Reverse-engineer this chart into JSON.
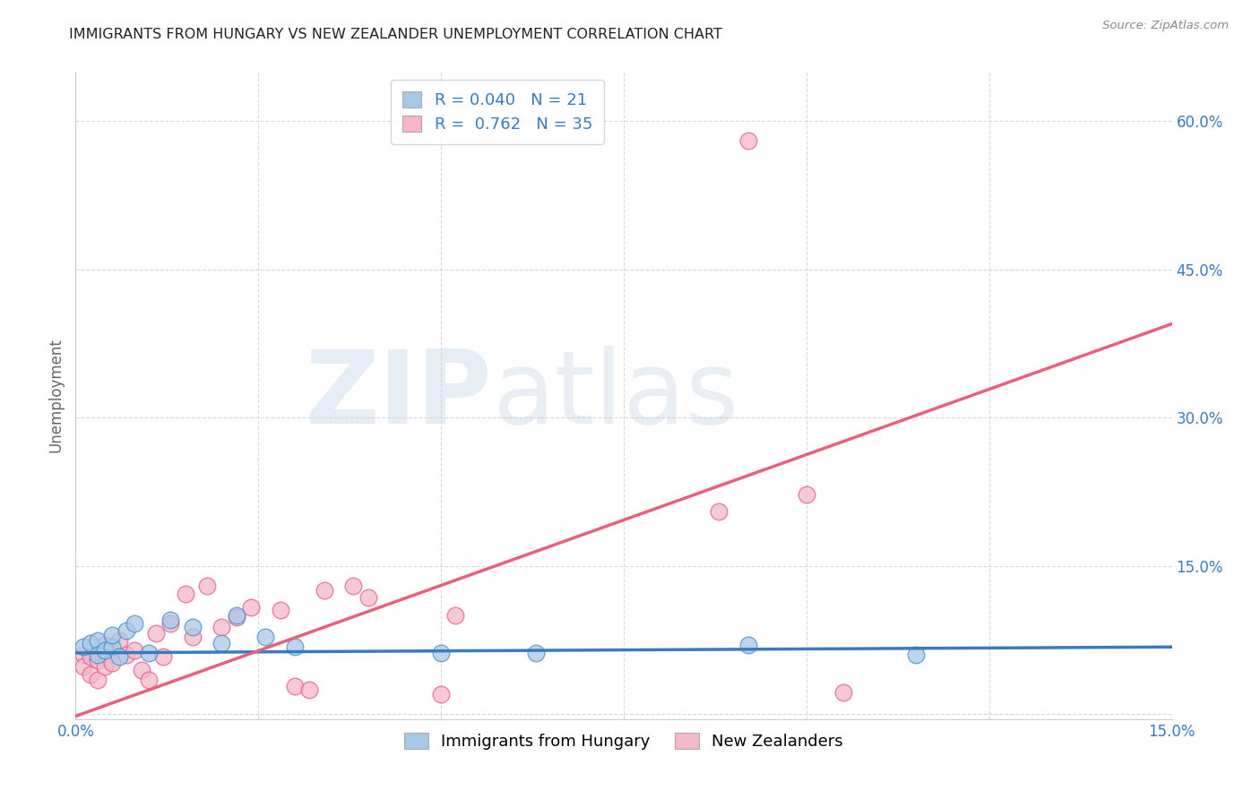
{
  "title": "IMMIGRANTS FROM HUNGARY VS NEW ZEALANDER UNEMPLOYMENT CORRELATION CHART",
  "source": "Source: ZipAtlas.com",
  "ylabel": "Unemployment",
  "xlim": [
    0.0,
    0.15
  ],
  "ylim": [
    -0.005,
    0.65
  ],
  "xticks": [
    0.0,
    0.025,
    0.05,
    0.075,
    0.1,
    0.125,
    0.15
  ],
  "xtick_labels": [
    "0.0%",
    "",
    "",
    "",
    "",
    "",
    "15.0%"
  ],
  "ytick_positions": [
    0.0,
    0.15,
    0.3,
    0.45,
    0.6
  ],
  "right_ytick_labels": [
    "",
    "15.0%",
    "30.0%",
    "45.0%",
    "60.0%"
  ],
  "blue_fill_color": "#a8c8e8",
  "pink_fill_color": "#f4b8c8",
  "blue_edge_color": "#4a90c4",
  "pink_edge_color": "#e06090",
  "blue_line_color": "#3a7abf",
  "pink_line_color": "#e8607a",
  "blue_R": 0.04,
  "blue_N": 21,
  "pink_R": 0.762,
  "pink_N": 35,
  "blue_line_x0": 0.0,
  "blue_line_y0": 0.062,
  "blue_line_x1": 0.15,
  "blue_line_y1": 0.068,
  "pink_line_x0": 0.0,
  "pink_line_y0": -0.002,
  "pink_line_x1": 0.15,
  "pink_line_y1": 0.395,
  "blue_scatter_x": [
    0.001,
    0.002,
    0.003,
    0.003,
    0.004,
    0.005,
    0.005,
    0.006,
    0.007,
    0.008,
    0.01,
    0.013,
    0.016,
    0.02,
    0.022,
    0.026,
    0.03,
    0.05,
    0.063,
    0.092,
    0.115
  ],
  "blue_scatter_y": [
    0.068,
    0.072,
    0.075,
    0.06,
    0.065,
    0.068,
    0.08,
    0.058,
    0.085,
    0.092,
    0.062,
    0.095,
    0.088,
    0.072,
    0.1,
    0.078,
    0.068,
    0.062,
    0.062,
    0.07,
    0.06
  ],
  "pink_scatter_x": [
    0.001,
    0.001,
    0.002,
    0.002,
    0.003,
    0.003,
    0.004,
    0.004,
    0.005,
    0.006,
    0.007,
    0.008,
    0.009,
    0.01,
    0.011,
    0.012,
    0.013,
    0.015,
    0.016,
    0.018,
    0.02,
    0.022,
    0.024,
    0.028,
    0.03,
    0.032,
    0.034,
    0.038,
    0.04,
    0.05,
    0.052,
    0.088,
    0.092,
    0.1,
    0.105
  ],
  "pink_scatter_y": [
    0.06,
    0.048,
    0.058,
    0.04,
    0.055,
    0.035,
    0.07,
    0.048,
    0.052,
    0.075,
    0.06,
    0.065,
    0.045,
    0.035,
    0.082,
    0.058,
    0.092,
    0.122,
    0.078,
    0.13,
    0.088,
    0.098,
    0.108,
    0.105,
    0.028,
    0.025,
    0.125,
    0.13,
    0.118,
    0.02,
    0.1,
    0.205,
    0.58,
    0.222,
    0.022
  ],
  "watermark_zip": "ZIP",
  "watermark_atlas": "atlas",
  "background_color": "#ffffff",
  "grid_color": "#d0d0d0",
  "legend_label1": "Immigrants from Hungary",
  "legend_label2": "New Zealanders",
  "title_fontsize": 11.5,
  "axis_label_fontsize": 12,
  "tick_fontsize": 12,
  "legend_fontsize": 13
}
